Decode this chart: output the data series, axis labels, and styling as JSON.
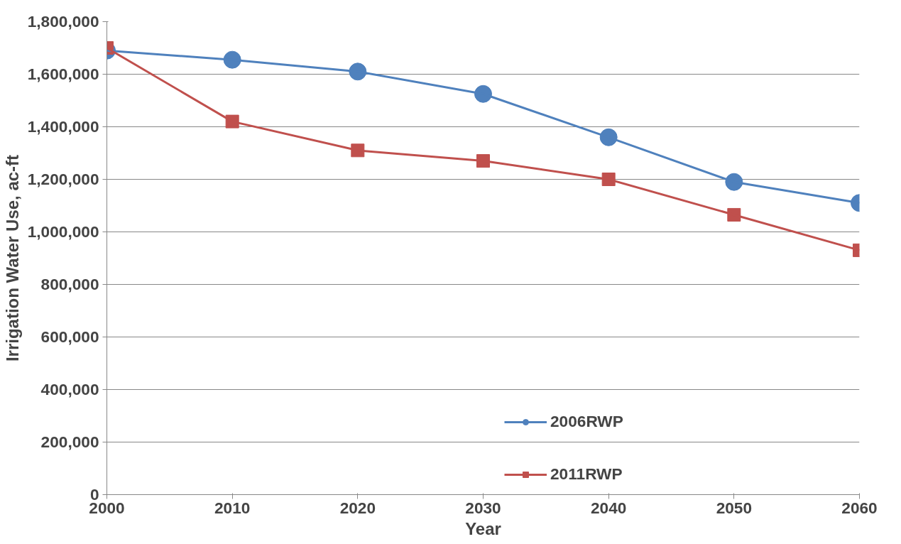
{
  "chart_data": {
    "type": "line",
    "xlabel": "Year",
    "ylabel": "Irrigation Water Use, ac-ft",
    "x": [
      2000,
      2010,
      2020,
      2030,
      2040,
      2050,
      2060
    ],
    "series": [
      {
        "name": "2006RWP",
        "color": "#4f81bd",
        "marker": "circle",
        "values": [
          1690000,
          1655000,
          1610000,
          1525000,
          1360000,
          1190000,
          1110000
        ]
      },
      {
        "name": "2011RWP",
        "color": "#c0504d",
        "marker": "square",
        "values": [
          1700000,
          1420000,
          1310000,
          1270000,
          1200000,
          1065000,
          930000
        ]
      }
    ],
    "xlim": [
      2000,
      2060
    ],
    "xticks": [
      2000,
      2010,
      2020,
      2030,
      2040,
      2050,
      2060
    ],
    "ylim": [
      0,
      1800000
    ],
    "yticks": [
      {
        "value": 0,
        "label": "0"
      },
      {
        "value": 200000,
        "label": "200,000"
      },
      {
        "value": 400000,
        "label": "400,000"
      },
      {
        "value": 600000,
        "label": "600,000"
      },
      {
        "value": 800000,
        "label": "800,000"
      },
      {
        "value": 1000000,
        "label": "1,000,000"
      },
      {
        "value": 1200000,
        "label": "1,200,000"
      },
      {
        "value": 1400000,
        "label": "1,400,000"
      },
      {
        "value": 1600000,
        "label": "1,600,000"
      },
      {
        "value": 1800000,
        "label": "1,800,000"
      }
    ],
    "grid": "y",
    "legend": "bottom right"
  }
}
